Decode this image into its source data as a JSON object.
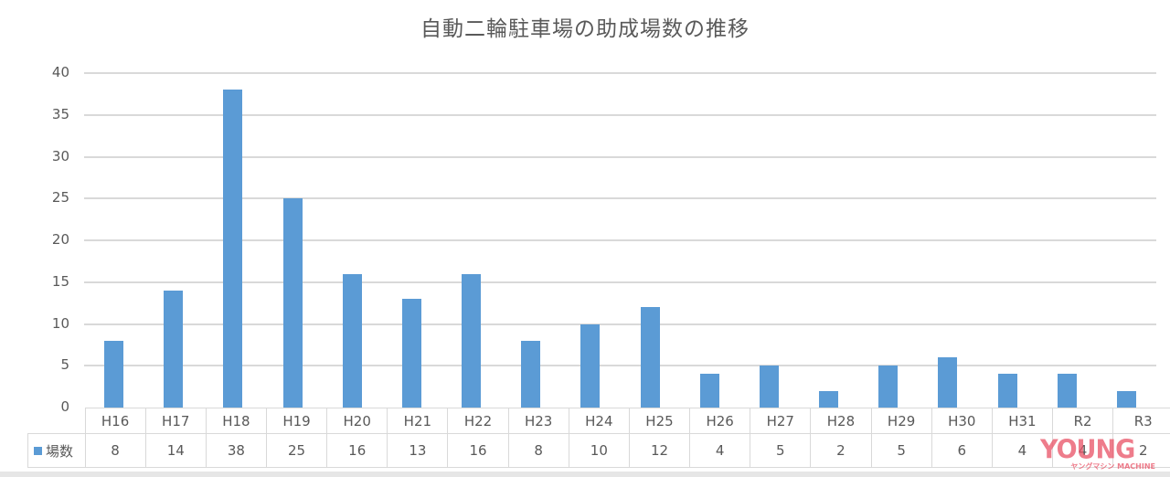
{
  "chart_data": {
    "type": "bar",
    "title": "自動二輪駐車場の助成場数の推移",
    "xlabel": "",
    "ylabel": "",
    "ylim": [
      0,
      40
    ],
    "yticks": [
      0,
      5,
      10,
      15,
      20,
      25,
      30,
      35,
      40
    ],
    "grid": true,
    "legend_position": "data-table",
    "categories": [
      "H16",
      "H17",
      "H18",
      "H19",
      "H20",
      "H21",
      "H22",
      "H23",
      "H24",
      "H25",
      "H26",
      "H27",
      "H28",
      "H29",
      "H30",
      "H31",
      "R2",
      "R3"
    ],
    "series": [
      {
        "name": "場数",
        "color": "#5b9bd5",
        "values": [
          8,
          14,
          38,
          25,
          16,
          13,
          16,
          8,
          10,
          12,
          4,
          5,
          2,
          5,
          6,
          4,
          4,
          2
        ]
      }
    ]
  },
  "watermark": {
    "main": "YOUNG",
    "sub": "ヤングマシン MACHINE"
  }
}
